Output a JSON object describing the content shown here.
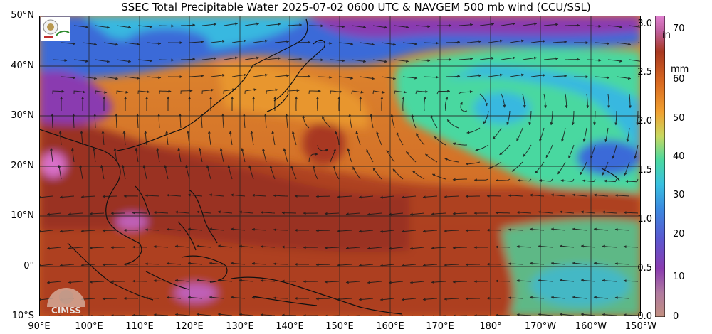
{
  "title": "SSEC Total Precipitable Water  2025-07-02 0600 UTC & NAVGEM 500 mb wind (CCU/SSL)",
  "lat_labels": [
    "50°N",
    "40°N",
    "30°N",
    "20°N",
    "10°N",
    "0°",
    "10°S"
  ],
  "lon_labels": [
    "90°E",
    "100°E",
    "110°E",
    "120°E",
    "130°E",
    "140°E",
    "150°E",
    "160°E",
    "170°E",
    "180°",
    "170°W",
    "160°W",
    "150°W"
  ],
  "colorbar": {
    "unit_in": "in",
    "unit_mm": "mm",
    "in_ticks": [
      "3.0",
      "2.5",
      "2.0",
      "1.5",
      "1.0",
      "0.5",
      "0.0"
    ],
    "mm_ticks": [
      "70",
      "60",
      "50",
      "40",
      "30",
      "20",
      "10",
      "0"
    ]
  },
  "logos": {
    "cimss_text": "CIMSS"
  },
  "colors": {
    "very_dry": "#c08a78",
    "dry": "#8a3bb0",
    "low": "#3a6bd8",
    "mid_low": "#38b8e0",
    "mid": "#4ad8a0",
    "mid_high": "#f0a030",
    "high": "#e07a20",
    "very_high": "#a83820",
    "extreme": "#d870c8"
  }
}
